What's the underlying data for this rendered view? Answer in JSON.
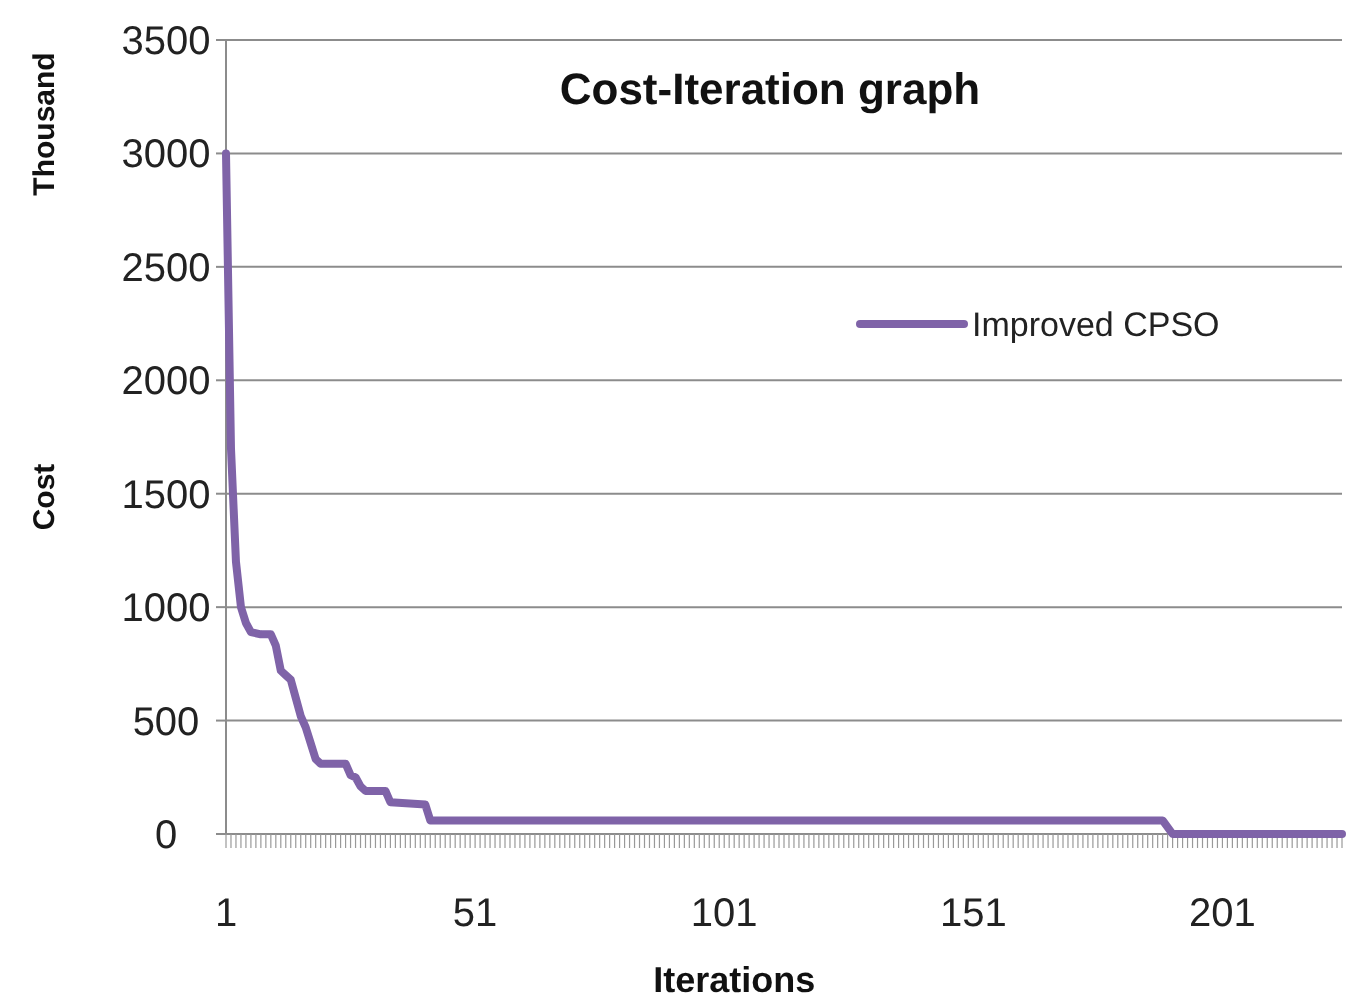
{
  "chart_data": {
    "type": "line",
    "title": "Cost-Iteration graph",
    "xlabel": "Iterations",
    "ylabel": "Cost",
    "annotations": [
      "Thousand"
    ],
    "xlim": [
      1,
      225
    ],
    "xticks": [
      1,
      51,
      101,
      151,
      201
    ],
    "ylim": [
      0,
      3500
    ],
    "yticks": [
      0,
      500,
      1000,
      1500,
      2000,
      2500,
      3000,
      3500
    ],
    "grid": "y",
    "legend": "right",
    "line_style": "solid",
    "series": [
      {
        "name": "Improved CPSO",
        "color": "#7f63a8",
        "x": [
          1,
          2,
          3,
          4,
          5,
          6,
          8,
          10,
          11,
          12,
          13,
          14,
          15,
          16,
          17,
          18,
          19,
          20,
          25,
          26,
          27,
          28,
          29,
          33,
          34,
          41,
          42,
          189,
          191,
          225
        ],
        "values": [
          3000,
          1700,
          1200,
          1000,
          930,
          890,
          880,
          880,
          830,
          720,
          700,
          680,
          600,
          520,
          470,
          400,
          330,
          310,
          310,
          260,
          250,
          210,
          190,
          190,
          140,
          130,
          60,
          60,
          0,
          0
        ]
      }
    ]
  }
}
